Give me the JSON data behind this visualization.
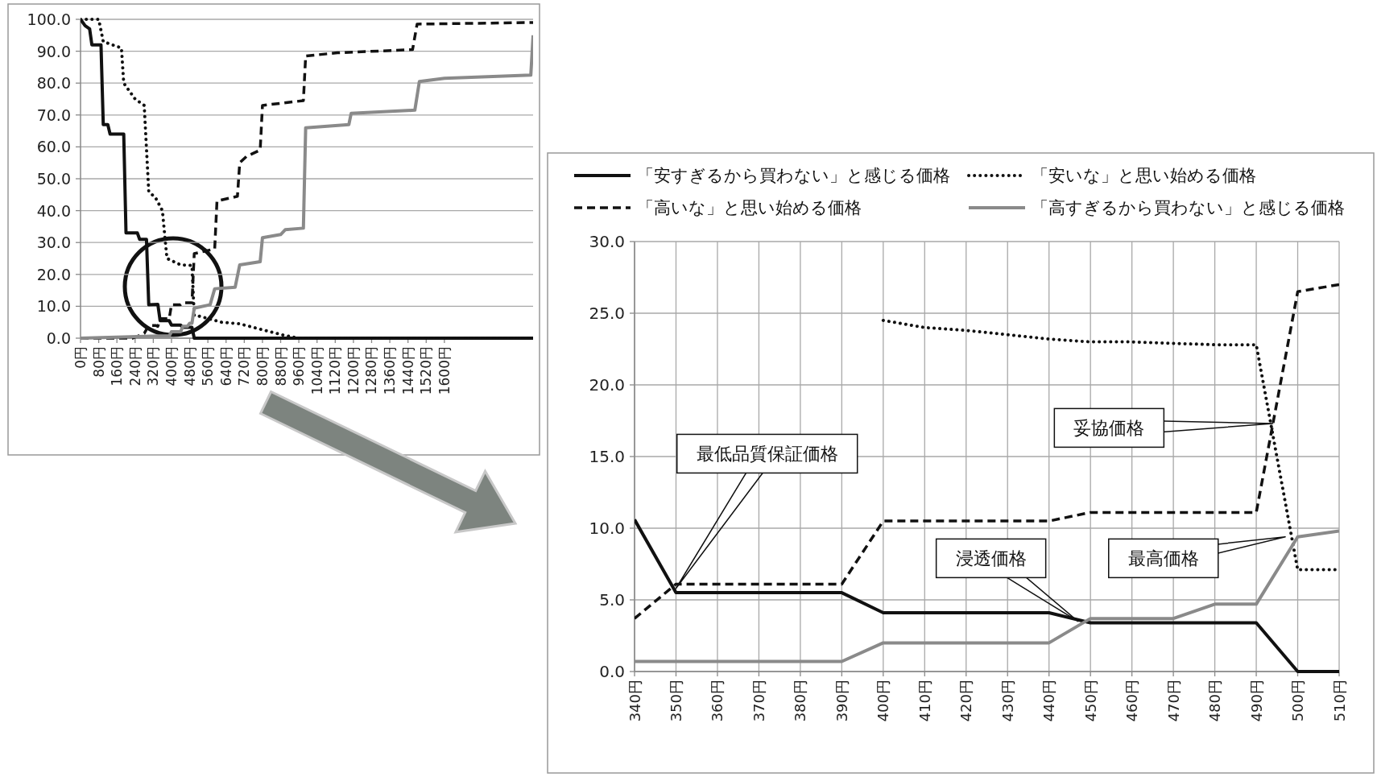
{
  "chart_data": [
    {
      "type": "line",
      "xlim": [
        0,
        1990
      ],
      "ylim": [
        0,
        100
      ],
      "grid": "y",
      "legend": false,
      "xticks": [
        {
          "value": 0,
          "label": "0円"
        },
        {
          "value": 80,
          "label": "80円"
        },
        {
          "value": 160,
          "label": "160円"
        },
        {
          "value": 240,
          "label": "240円"
        },
        {
          "value": 320,
          "label": "320円"
        },
        {
          "value": 400,
          "label": "400円"
        },
        {
          "value": 480,
          "label": "480円"
        },
        {
          "value": 560,
          "label": "560円"
        },
        {
          "value": 640,
          "label": "640円"
        },
        {
          "value": 720,
          "label": "720円"
        },
        {
          "value": 800,
          "label": "800円"
        },
        {
          "value": 880,
          "label": "880円"
        },
        {
          "value": 960,
          "label": "960円"
        },
        {
          "value": 1040,
          "label": "1040円"
        },
        {
          "value": 1120,
          "label": "1120円"
        },
        {
          "value": 1200,
          "label": "1200円"
        },
        {
          "value": 1280,
          "label": "1280円"
        },
        {
          "value": 1360,
          "label": "1360円"
        },
        {
          "value": 1440,
          "label": "1440円"
        },
        {
          "value": 1520,
          "label": "1520円"
        },
        {
          "value": 1600,
          "label": "1600円"
        }
      ],
      "yticks": [
        {
          "value": 0,
          "label": "0.0"
        },
        {
          "value": 10,
          "label": "10.0"
        },
        {
          "value": 20,
          "label": "20.0"
        },
        {
          "value": 30,
          "label": "30.0"
        },
        {
          "value": 40,
          "label": "40.0"
        },
        {
          "value": 50,
          "label": "50.0"
        },
        {
          "value": 60,
          "label": "60.0"
        },
        {
          "value": 70,
          "label": "70.0"
        },
        {
          "value": 80,
          "label": "80.0"
        },
        {
          "value": 90,
          "label": "90.0"
        },
        {
          "value": 100,
          "label": "100.0"
        }
      ],
      "series": [
        {
          "color": "#111111",
          "line_style": "solid",
          "x": [
            0,
            20,
            40,
            50,
            90,
            100,
            120,
            130,
            190,
            200,
            250,
            260,
            290,
            300,
            340,
            350,
            390,
            400,
            440,
            450,
            490,
            500,
            1990
          ],
          "values": [
            100,
            98,
            97,
            92,
            92,
            67,
            67,
            64,
            64,
            33,
            33,
            31,
            31,
            10.5,
            10.6,
            5.5,
            5.5,
            4.1,
            4.1,
            3.4,
            3.4,
            0,
            0
          ]
        },
        {
          "color": "#111111",
          "line_style": "dotted",
          "x": [
            0,
            80,
            100,
            180,
            190,
            240,
            280,
            300,
            330,
            360,
            380,
            440,
            490,
            500,
            510,
            570,
            620,
            700,
            900,
            960,
            1990
          ],
          "values": [
            100,
            100,
            93,
            91,
            80,
            75,
            73,
            46,
            44,
            40,
            25,
            23,
            22.8,
            7.1,
            7.1,
            6,
            5,
            4.5,
            0.8,
            0,
            0
          ]
        },
        {
          "color": "#111111",
          "line_style": "dashed",
          "x": [
            0,
            230,
            280,
            300,
            330,
            340,
            350,
            390,
            400,
            440,
            450,
            490,
            500,
            590,
            600,
            690,
            700,
            730,
            790,
            800,
            980,
            990,
            1130,
            1460,
            1480,
            1990
          ],
          "values": [
            0,
            0,
            1.5,
            4,
            4,
            3.7,
            6.1,
            6.1,
            10.5,
            10.5,
            11.1,
            11.1,
            26.5,
            28,
            43,
            44.5,
            55,
            57,
            59,
            73,
            74.5,
            88.5,
            89.5,
            90.5,
            98.5,
            99
          ]
        },
        {
          "color": "#8a8a8a",
          "line_style": "solid",
          "x": [
            0,
            250,
            340,
            390,
            400,
            440,
            450,
            470,
            480,
            490,
            500,
            570,
            590,
            680,
            700,
            790,
            800,
            880,
            900,
            980,
            990,
            1180,
            1190,
            1470,
            1490,
            1600,
            1980,
            1990
          ],
          "values": [
            0,
            0.5,
            0.7,
            0.7,
            2,
            2,
            3.7,
            3.7,
            4.7,
            4.7,
            9.4,
            10.5,
            15.5,
            16,
            23,
            24,
            31.5,
            32.5,
            34,
            34.5,
            66,
            67,
            70.5,
            71.5,
            80.5,
            81.5,
            82.5,
            95
          ]
        }
      ]
    },
    {
      "type": "line",
      "xlim": [
        340,
        510
      ],
      "ylim": [
        0,
        30
      ],
      "grid": true,
      "legend": "top right",
      "x": [
        340,
        350,
        360,
        370,
        380,
        390,
        400,
        410,
        420,
        430,
        440,
        450,
        460,
        470,
        480,
        490,
        500,
        510
      ],
      "xticks": [
        {
          "value": 340,
          "label": "340円"
        },
        {
          "value": 350,
          "label": "350円"
        },
        {
          "value": 360,
          "label": "360円"
        },
        {
          "value": 370,
          "label": "370円"
        },
        {
          "value": 380,
          "label": "380円"
        },
        {
          "value": 390,
          "label": "390円"
        },
        {
          "value": 400,
          "label": "400円"
        },
        {
          "value": 410,
          "label": "410円"
        },
        {
          "value": 420,
          "label": "420円"
        },
        {
          "value": 430,
          "label": "430円"
        },
        {
          "value": 440,
          "label": "440円"
        },
        {
          "value": 450,
          "label": "450円"
        },
        {
          "value": 460,
          "label": "460円"
        },
        {
          "value": 470,
          "label": "470円"
        },
        {
          "value": 480,
          "label": "480円"
        },
        {
          "value": 490,
          "label": "490円"
        },
        {
          "value": 500,
          "label": "500円"
        },
        {
          "value": 510,
          "label": "510円"
        }
      ],
      "yticks": [
        {
          "value": 0,
          "label": "0.0"
        },
        {
          "value": 5,
          "label": "5.0"
        },
        {
          "value": 10,
          "label": "10.0"
        },
        {
          "value": 15,
          "label": "15.0"
        },
        {
          "value": 20,
          "label": "20.0"
        },
        {
          "value": 25,
          "label": "25.0"
        },
        {
          "value": 30,
          "label": "30.0"
        }
      ],
      "series": [
        {
          "name": "「安すぎるから買わない」と感じる価格",
          "color": "#111111",
          "line_style": "solid",
          "values": [
            10.6,
            5.5,
            5.5,
            5.5,
            5.5,
            5.5,
            4.1,
            4.1,
            4.1,
            4.1,
            4.1,
            3.4,
            3.4,
            3.4,
            3.4,
            3.4,
            0,
            0
          ]
        },
        {
          "name": "「安いな」と思い始める価格",
          "color": "#111111",
          "line_style": "dotted",
          "values": [
            null,
            null,
            null,
            null,
            null,
            null,
            24.5,
            24,
            23.8,
            23.5,
            23.2,
            23,
            23,
            22.9,
            22.8,
            22.8,
            7.1,
            7.1
          ]
        },
        {
          "name": "「高いな」と思い始める価格",
          "color": "#111111",
          "line_style": "dashed",
          "values": [
            3.7,
            6.1,
            6.1,
            6.1,
            6.1,
            6.1,
            10.5,
            10.5,
            10.5,
            10.5,
            10.5,
            11.1,
            11.1,
            11.1,
            11.1,
            11.1,
            26.5,
            27
          ]
        },
        {
          "name": "「高すぎるから買わない」と感じる価格",
          "color": "#8a8a8a",
          "line_style": "solid",
          "values": [
            0.7,
            0.7,
            0.7,
            0.7,
            0.7,
            0.7,
            2,
            2,
            2,
            2,
            2,
            3.7,
            3.7,
            3.7,
            4.7,
            4.7,
            9.4,
            9.8
          ]
        }
      ],
      "annotations": [
        "最低品質保証価格",
        "浸透価格",
        "最高価格",
        "妥協価格"
      ]
    }
  ]
}
